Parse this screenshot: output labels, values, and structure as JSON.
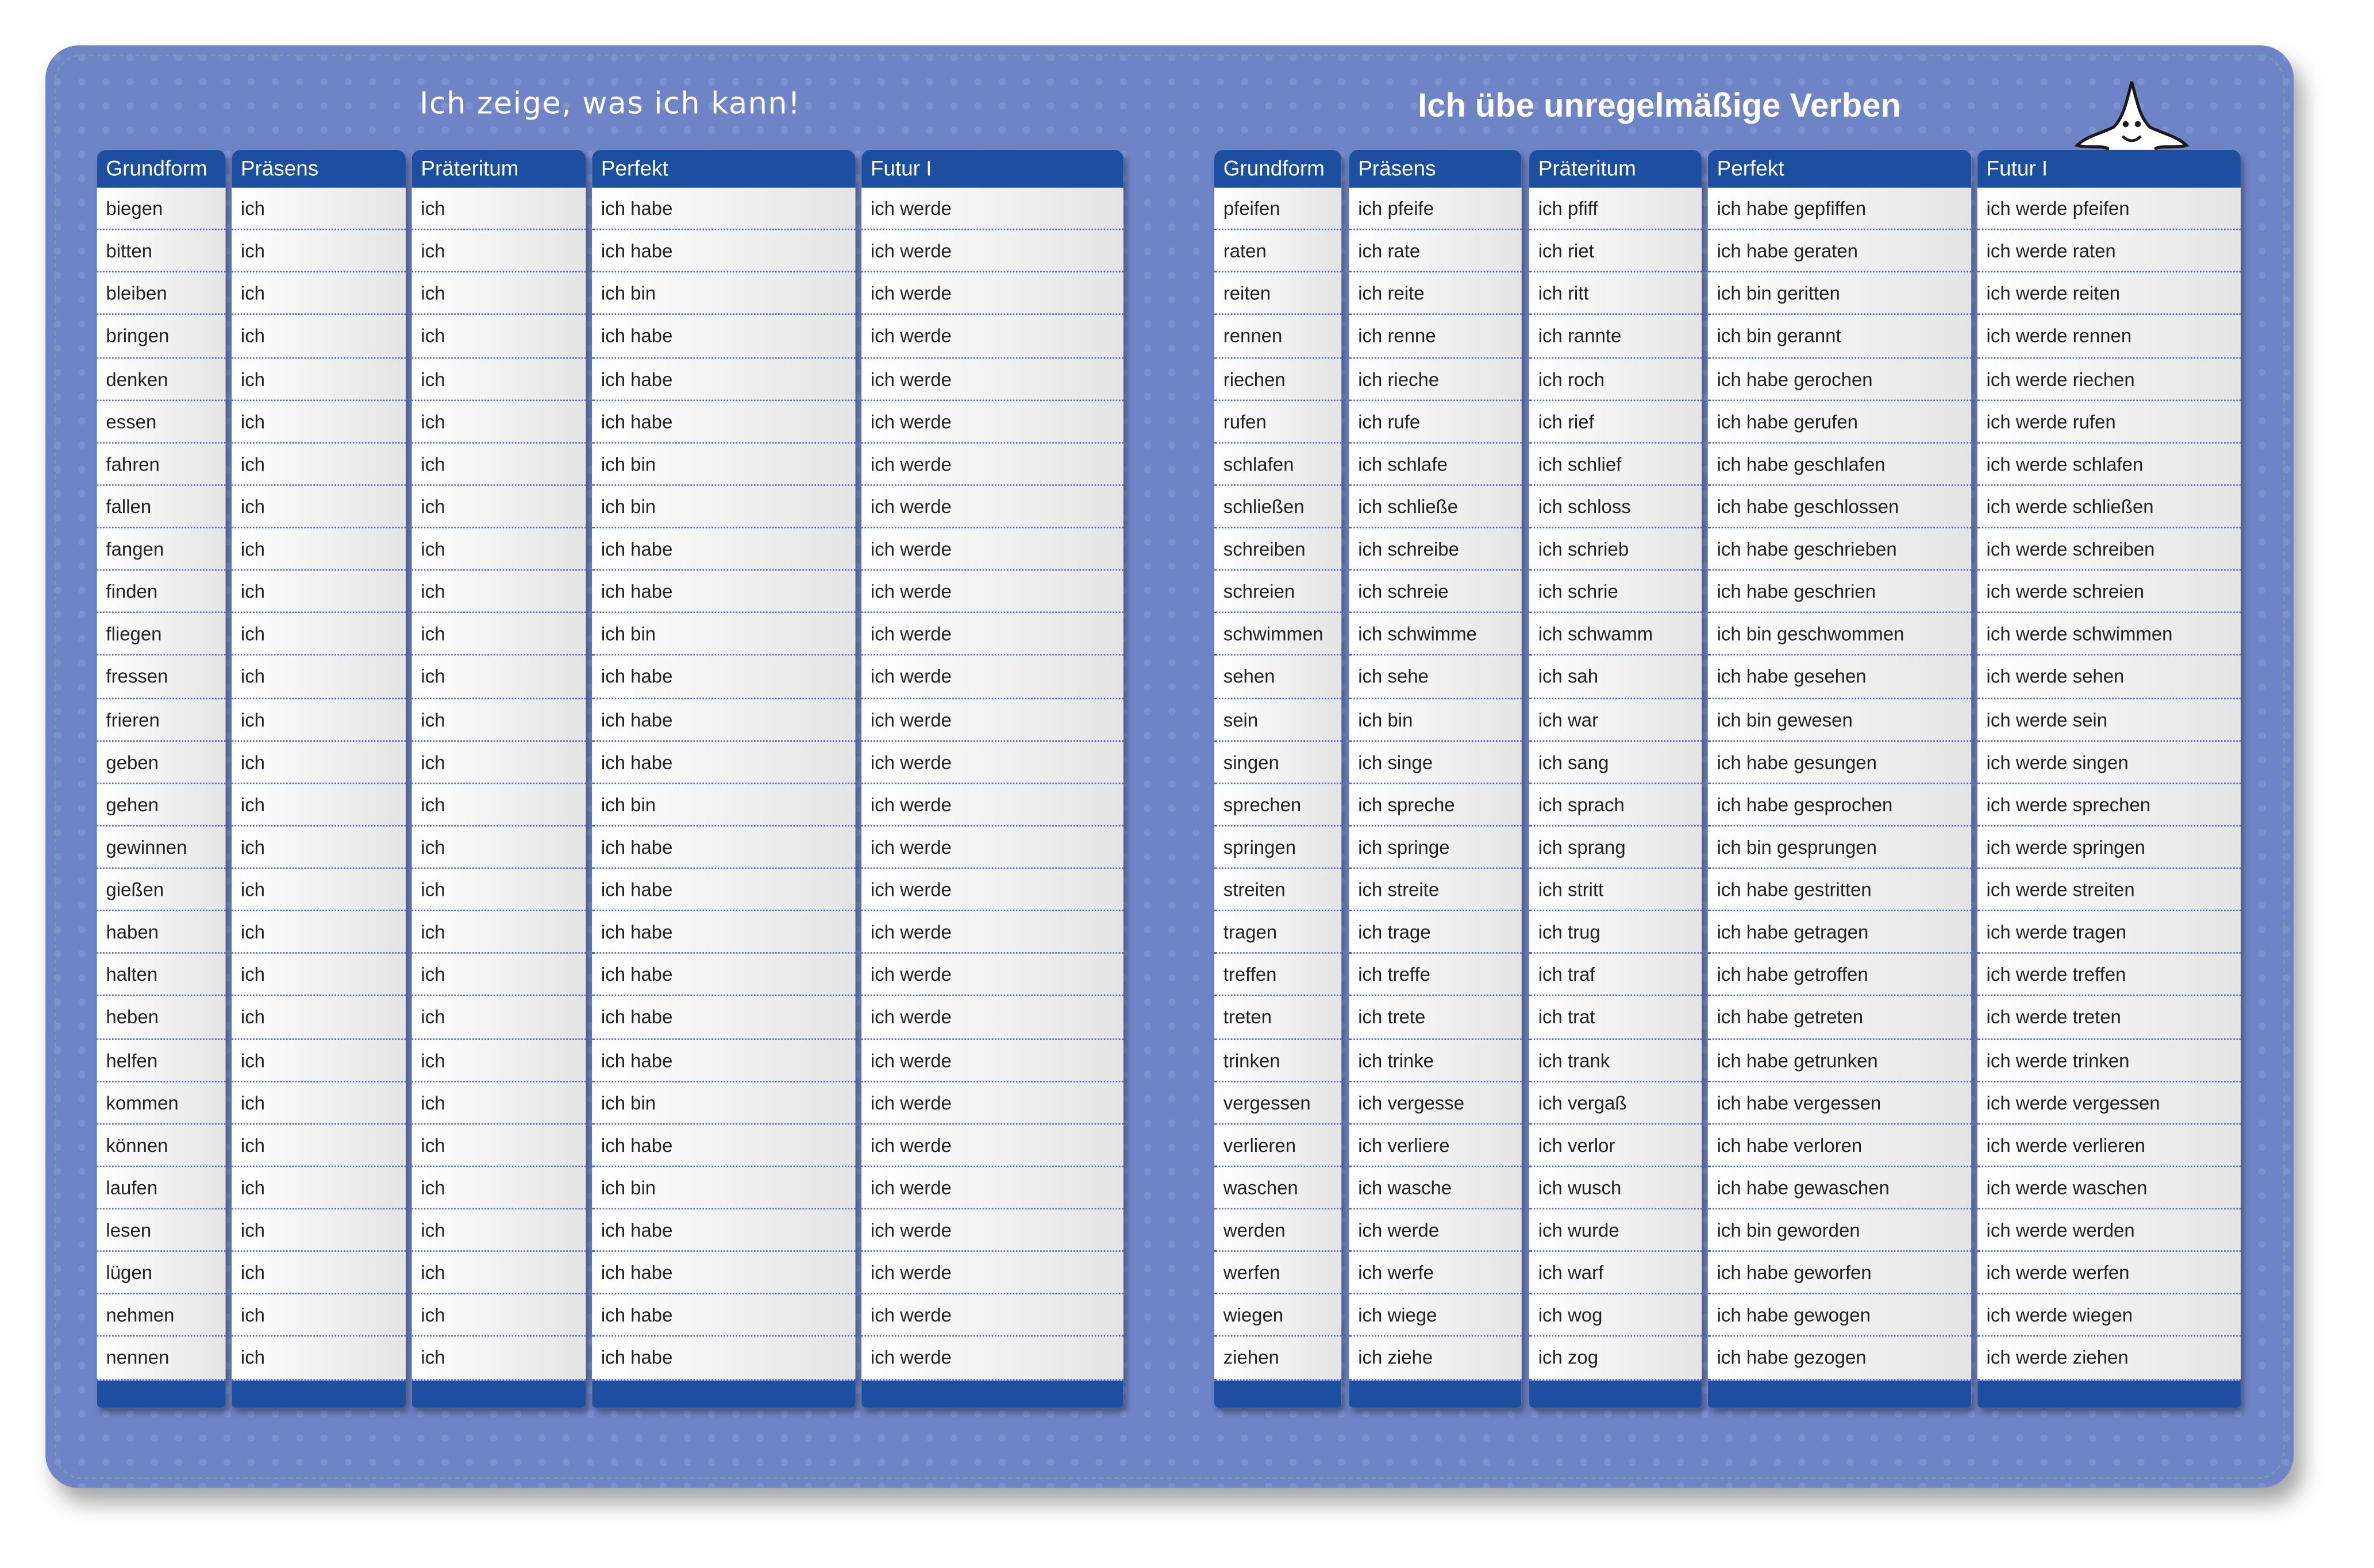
{
  "left_page": {
    "title": "Ich zeige, was ich kann!",
    "table": {
      "headers": [
        "Grundform",
        "Präsens",
        "Präteritum",
        "Perfekt",
        "Futur I"
      ],
      "rows": [
        [
          "biegen",
          "ich",
          "ich",
          "ich habe",
          "ich werde"
        ],
        [
          "bitten",
          "ich",
          "ich",
          "ich habe",
          "ich werde"
        ],
        [
          "bleiben",
          "ich",
          "ich",
          "ich bin",
          "ich werde"
        ],
        [
          "bringen",
          "ich",
          "ich",
          "ich habe",
          "ich werde"
        ],
        [
          "denken",
          "ich",
          "ich",
          "ich habe",
          "ich werde"
        ],
        [
          "essen",
          "ich",
          "ich",
          "ich habe",
          "ich werde"
        ],
        [
          "fahren",
          "ich",
          "ich",
          "ich bin",
          "ich werde"
        ],
        [
          "fallen",
          "ich",
          "ich",
          "ich bin",
          "ich werde"
        ],
        [
          "fangen",
          "ich",
          "ich",
          "ich habe",
          "ich werde"
        ],
        [
          "finden",
          "ich",
          "ich",
          "ich habe",
          "ich werde"
        ],
        [
          "fliegen",
          "ich",
          "ich",
          "ich bin",
          "ich werde"
        ],
        [
          "fressen",
          "ich",
          "ich",
          "ich habe",
          "ich werde"
        ],
        [
          "frieren",
          "ich",
          "ich",
          "ich habe",
          "ich werde"
        ],
        [
          "geben",
          "ich",
          "ich",
          "ich habe",
          "ich werde"
        ],
        [
          "gehen",
          "ich",
          "ich",
          "ich bin",
          "ich werde"
        ],
        [
          "gewinnen",
          "ich",
          "ich",
          "ich habe",
          "ich werde"
        ],
        [
          "gießen",
          "ich",
          "ich",
          "ich habe",
          "ich werde"
        ],
        [
          "haben",
          "ich",
          "ich",
          "ich habe",
          "ich werde"
        ],
        [
          "halten",
          "ich",
          "ich",
          "ich habe",
          "ich werde"
        ],
        [
          "heben",
          "ich",
          "ich",
          "ich habe",
          "ich werde"
        ],
        [
          "helfen",
          "ich",
          "ich",
          "ich habe",
          "ich werde"
        ],
        [
          "kommen",
          "ich",
          "ich",
          "ich bin",
          "ich werde"
        ],
        [
          "können",
          "ich",
          "ich",
          "ich habe",
          "ich werde"
        ],
        [
          "laufen",
          "ich",
          "ich",
          "ich bin",
          "ich werde"
        ],
        [
          "lesen",
          "ich",
          "ich",
          "ich habe",
          "ich werde"
        ],
        [
          "lügen",
          "ich",
          "ich",
          "ich habe",
          "ich werde"
        ],
        [
          "nehmen",
          "ich",
          "ich",
          "ich habe",
          "ich werde"
        ],
        [
          "nennen",
          "ich",
          "ich",
          "ich habe",
          "ich werde"
        ]
      ]
    }
  },
  "right_page": {
    "title": "Ich übe unregelmäßige Verben",
    "table": {
      "headers": [
        "Grundform",
        "Präsens",
        "Präteritum",
        "Perfekt",
        "Futur I"
      ],
      "rows": [
        [
          "pfeifen",
          "ich pfeife",
          "ich pfiff",
          "ich habe gepfiffen",
          "ich werde pfeifen"
        ],
        [
          "raten",
          "ich rate",
          "ich riet",
          "ich habe geraten",
          "ich werde raten"
        ],
        [
          "reiten",
          "ich reite",
          "ich ritt",
          "ich bin geritten",
          "ich werde reiten"
        ],
        [
          "rennen",
          "ich renne",
          "ich rannte",
          "ich bin gerannt",
          "ich werde rennen"
        ],
        [
          "riechen",
          "ich rieche",
          "ich roch",
          "ich habe gerochen",
          "ich werde riechen"
        ],
        [
          "rufen",
          "ich rufe",
          "ich rief",
          "ich habe gerufen",
          "ich werde rufen"
        ],
        [
          "schlafen",
          "ich schlafe",
          "ich schlief",
          "ich habe geschlafen",
          "ich werde schlafen"
        ],
        [
          "schließen",
          "ich schließe",
          "ich schloss",
          "ich habe geschlossen",
          "ich werde schließen"
        ],
        [
          "schreiben",
          "ich schreibe",
          "ich schrieb",
          "ich habe geschrieben",
          "ich werde schreiben"
        ],
        [
          "schreien",
          "ich schreie",
          "ich schrie",
          "ich habe geschrien",
          "ich werde schreien"
        ],
        [
          "schwimmen",
          "ich schwimme",
          "ich schwamm",
          "ich bin geschwommen",
          "ich werde schwimmen"
        ],
        [
          "sehen",
          "ich sehe",
          "ich sah",
          "ich habe gesehen",
          "ich werde sehen"
        ],
        [
          "sein",
          "ich bin",
          "ich war",
          "ich bin gewesen",
          "ich werde sein"
        ],
        [
          "singen",
          "ich singe",
          "ich sang",
          "ich habe gesungen",
          "ich werde singen"
        ],
        [
          "sprechen",
          "ich spreche",
          "ich sprach",
          "ich habe gesprochen",
          "ich werde sprechen"
        ],
        [
          "springen",
          "ich springe",
          "ich sprang",
          "ich bin gesprungen",
          "ich werde springen"
        ],
        [
          "streiten",
          "ich streite",
          "ich stritt",
          "ich habe gestritten",
          "ich werde streiten"
        ],
        [
          "tragen",
          "ich trage",
          "ich trug",
          "ich habe getragen",
          "ich werde tragen"
        ],
        [
          "treffen",
          "ich treffe",
          "ich traf",
          "ich habe getroffen",
          "ich werde treffen"
        ],
        [
          "treten",
          "ich trete",
          "ich trat",
          "ich habe getreten",
          "ich werde treten"
        ],
        [
          "trinken",
          "ich trinke",
          "ich trank",
          "ich habe getrunken",
          "ich werde trinken"
        ],
        [
          "vergessen",
          "ich vergesse",
          "ich vergaß",
          "ich habe vergessen",
          "ich werde vergessen"
        ],
        [
          "verlieren",
          "ich verliere",
          "ich verlor",
          "ich habe verloren",
          "ich werde verlieren"
        ],
        [
          "waschen",
          "ich wasche",
          "ich wusch",
          "ich habe gewaschen",
          "ich werde waschen"
        ],
        [
          "werden",
          "ich werde",
          "ich wurde",
          "ich bin geworden",
          "ich werde werden"
        ],
        [
          "werfen",
          "ich werfe",
          "ich warf",
          "ich habe geworfen",
          "ich werde werfen"
        ],
        [
          "wiegen",
          "ich wiege",
          "ich wog",
          "ich habe gewogen",
          "ich werde wiegen"
        ],
        [
          "ziehen",
          "ich ziehe",
          "ich zog",
          "ich habe gezogen",
          "ich werde ziehen"
        ]
      ]
    }
  }
}
